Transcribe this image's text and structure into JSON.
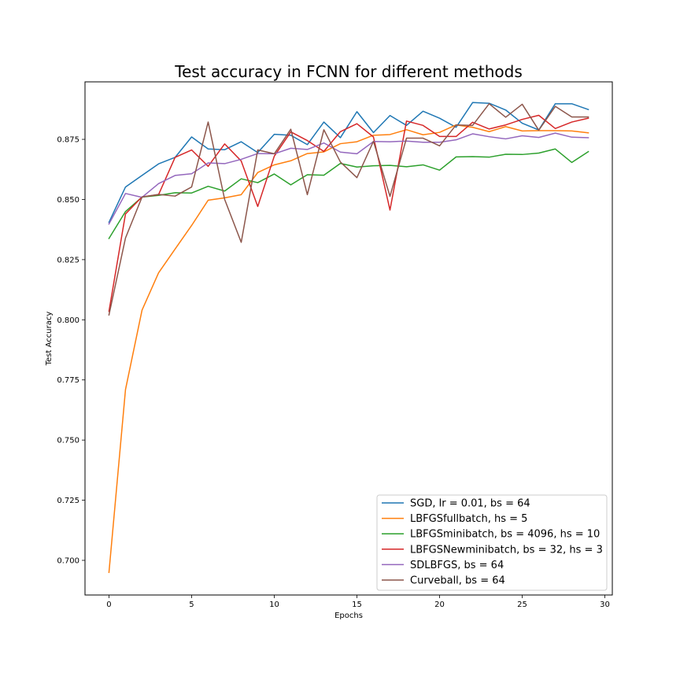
{
  "chart_data": {
    "type": "line",
    "title": "Test accuracy in FCNN for different methods",
    "xlabel": "Epochs",
    "ylabel": "Test Accuracy",
    "xlim": [
      -1.45,
      30.45
    ],
    "ylim": [
      0.6856,
      0.8989
    ],
    "xticks": [
      0,
      5,
      10,
      15,
      20,
      25,
      30
    ],
    "yticks": [
      0.7,
      0.725,
      0.75,
      0.775,
      0.8,
      0.825,
      0.85,
      0.875
    ],
    "ytick_labels": [
      "0.700",
      "0.725",
      "0.750",
      "0.775",
      "0.800",
      "0.825",
      "0.850",
      "0.875"
    ],
    "grid": false,
    "legend_position": "lower right",
    "x": [
      0,
      1,
      2,
      3,
      4,
      5,
      6,
      7,
      8,
      9,
      10,
      11,
      12,
      13,
      14,
      15,
      16,
      17,
      18,
      19,
      20,
      21,
      22,
      23,
      24,
      25,
      26,
      27,
      28,
      29
    ],
    "series": [
      {
        "name": "SGD, lr = 0.01, bs = 64",
        "color": "#1f77b4",
        "values": [
          0.8405,
          0.8552,
          0.86,
          0.8648,
          0.8675,
          0.876,
          0.871,
          0.8707,
          0.874,
          0.8695,
          0.8771,
          0.8767,
          0.8728,
          0.8822,
          0.8757,
          0.8865,
          0.8778,
          0.8849,
          0.8808,
          0.8867,
          0.8838,
          0.88,
          0.8903,
          0.89,
          0.8872,
          0.8817,
          0.8789,
          0.8898,
          0.8898,
          0.8874
        ]
      },
      {
        "name": "LBFGSfullbatch, hs = 5",
        "color": "#ff7f0e",
        "values": [
          0.695,
          0.771,
          0.804,
          0.8195,
          0.8294,
          0.8392,
          0.8497,
          0.8507,
          0.852,
          0.8612,
          0.8644,
          0.8661,
          0.8691,
          0.8698,
          0.8732,
          0.874,
          0.8767,
          0.877,
          0.879,
          0.8769,
          0.8779,
          0.881,
          0.88,
          0.8782,
          0.8803,
          0.8785,
          0.8786,
          0.8786,
          0.8785,
          0.8777
        ]
      },
      {
        "name": "LBFGSminibatch, bs = 4096, hs = 10",
        "color": "#2ca02c",
        "values": [
          0.8338,
          0.845,
          0.851,
          0.8517,
          0.8528,
          0.8527,
          0.8555,
          0.8535,
          0.8586,
          0.857,
          0.8606,
          0.8561,
          0.8603,
          0.8601,
          0.865,
          0.8635,
          0.864,
          0.8642,
          0.8636,
          0.8644,
          0.8622,
          0.8677,
          0.8678,
          0.8676,
          0.8688,
          0.8687,
          0.8693,
          0.871,
          0.8654,
          0.8699
        ]
      },
      {
        "name": "LBFGSNewminibatch, bs = 32, hs = 3",
        "color": "#d62728",
        "values": [
          0.8035,
          0.844,
          0.8511,
          0.852,
          0.8675,
          0.8706,
          0.8638,
          0.8731,
          0.866,
          0.8471,
          0.868,
          0.8781,
          0.8745,
          0.87,
          0.8782,
          0.8815,
          0.876,
          0.8456,
          0.8826,
          0.8808,
          0.8762,
          0.8762,
          0.8821,
          0.8793,
          0.881,
          0.8833,
          0.885,
          0.8795,
          0.8822,
          0.8838
        ]
      },
      {
        "name": "SDLBFGS, bs = 64",
        "color": "#9467bd",
        "values": [
          0.8398,
          0.8525,
          0.8509,
          0.8566,
          0.86,
          0.8607,
          0.8652,
          0.8649,
          0.8667,
          0.8691,
          0.869,
          0.8713,
          0.8708,
          0.8735,
          0.8697,
          0.869,
          0.8741,
          0.874,
          0.8743,
          0.8738,
          0.8738,
          0.8748,
          0.8773,
          0.8761,
          0.8752,
          0.8765,
          0.8758,
          0.8776,
          0.8759,
          0.8757
        ]
      },
      {
        "name": "Curveball, bs = 64",
        "color": "#8c564b",
        "values": [
          0.802,
          0.834,
          0.851,
          0.8521,
          0.8514,
          0.8552,
          0.8822,
          0.85,
          0.8322,
          0.8706,
          0.869,
          0.8792,
          0.852,
          0.879,
          0.8656,
          0.8591,
          0.8742,
          0.8513,
          0.8755,
          0.8755,
          0.8723,
          0.881,
          0.8808,
          0.8898,
          0.8842,
          0.8896,
          0.8788,
          0.8887,
          0.8843,
          0.8843
        ]
      }
    ]
  }
}
